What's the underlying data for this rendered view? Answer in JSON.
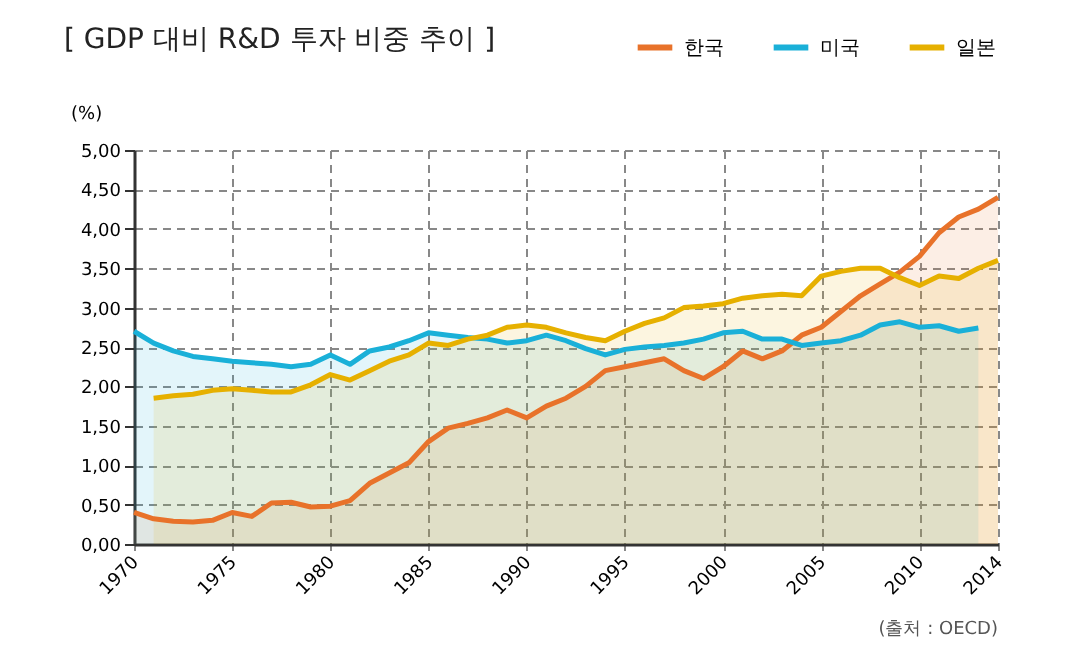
{
  "chart_data": {
    "type": "area",
    "title": "[ GDP 대비 R&D 투자 비중 추이 ]",
    "ylabel": "(%)",
    "annotations": [
      "(출처 : OECD)"
    ],
    "x": [
      1970,
      1971,
      1972,
      1973,
      1974,
      1975,
      1976,
      1977,
      1978,
      1979,
      1980,
      1981,
      1982,
      1983,
      1984,
      1985,
      1986,
      1987,
      1988,
      1989,
      1990,
      1991,
      1992,
      1993,
      1994,
      1995,
      1996,
      1997,
      1998,
      1999,
      2000,
      2001,
      2002,
      2003,
      2004,
      2005,
      2006,
      2007,
      2008,
      2009,
      2010,
      2011,
      2012,
      2013,
      2014
    ],
    "series": [
      {
        "name": "한국",
        "color": "#e8722a",
        "values": [
          0.4,
          0.32,
          0.29,
          0.28,
          0.3,
          0.4,
          0.35,
          0.52,
          0.53,
          0.47,
          0.48,
          0.55,
          0.77,
          0.9,
          1.03,
          1.3,
          1.47,
          1.53,
          1.6,
          1.7,
          1.6,
          1.75,
          1.85,
          2.0,
          2.2,
          2.25,
          2.3,
          2.35,
          2.2,
          2.1,
          2.25,
          2.45,
          2.35,
          2.45,
          2.65,
          2.75,
          2.95,
          3.15,
          3.3,
          3.45,
          3.65,
          3.95,
          4.15,
          4.25,
          4.4
        ]
      },
      {
        "name": "미국",
        "color": "#1ab0d8",
        "values": [
          2.7,
          2.55,
          2.45,
          2.38,
          2.35,
          2.32,
          2.3,
          2.28,
          2.25,
          2.28,
          2.4,
          2.28,
          2.45,
          2.5,
          2.58,
          2.68,
          2.65,
          2.62,
          2.6,
          2.55,
          2.58,
          2.65,
          2.58,
          2.48,
          2.4,
          2.47,
          2.5,
          2.52,
          2.55,
          2.6,
          2.68,
          2.7,
          2.6,
          2.6,
          2.52,
          2.55,
          2.58,
          2.65,
          2.78,
          2.82,
          2.75,
          2.77,
          2.7,
          2.74,
          null
        ]
      },
      {
        "name": "일본",
        "color": "#e6b000",
        "values": [
          null,
          1.85,
          1.88,
          1.9,
          1.95,
          1.97,
          1.95,
          1.93,
          1.93,
          2.02,
          2.15,
          2.08,
          2.2,
          2.32,
          2.4,
          2.55,
          2.52,
          2.6,
          2.65,
          2.75,
          2.78,
          2.75,
          2.68,
          2.62,
          2.58,
          2.7,
          2.8,
          2.87,
          3.0,
          3.02,
          3.05,
          3.12,
          3.15,
          3.17,
          3.15,
          3.4,
          3.46,
          3.5,
          3.5,
          3.38,
          3.28,
          3.4,
          3.37,
          3.5,
          3.6
        ]
      }
    ],
    "xlim": [
      1970,
      2014
    ],
    "xticks": [
      1970,
      1975,
      1980,
      1985,
      1990,
      1995,
      2000,
      2005,
      2010,
      2014
    ],
    "ylim": [
      0,
      5
    ],
    "yticks": [
      {
        "value": 0,
        "label": "0,00"
      },
      {
        "value": 0.5,
        "label": "0,50"
      },
      {
        "value": 1,
        "label": "1,00"
      },
      {
        "value": 1.5,
        "label": "1,50"
      },
      {
        "value": 2,
        "label": "2,00"
      },
      {
        "value": 2.5,
        "label": "2,50"
      },
      {
        "value": 3,
        "label": "3,00"
      },
      {
        "value": 3.5,
        "label": "3,50"
      },
      {
        "value": 4,
        "label": "4,00"
      },
      {
        "value": 4.5,
        "label": "4,50"
      },
      {
        "value": 5,
        "label": "5,00"
      }
    ],
    "grid": true,
    "legend": "top right"
  }
}
